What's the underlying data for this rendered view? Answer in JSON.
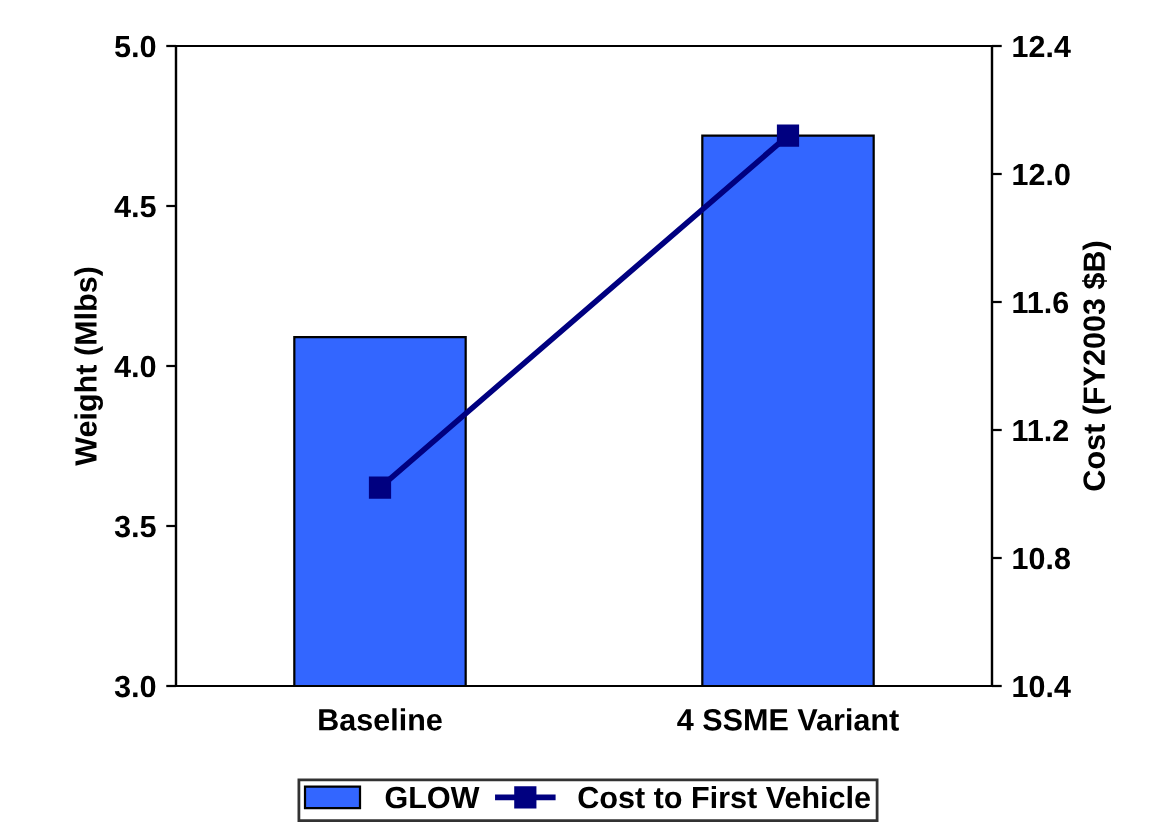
{
  "chart_data": {
    "type": "bar",
    "categories": [
      "Baseline",
      "4 SSME Variant"
    ],
    "ylabel": "Weight (Mlbs)",
    "y2label": "Cost (FY2003 $B)",
    "ylim": [
      3.0,
      5.0
    ],
    "yticks": [
      {
        "value": 3.0,
        "label": "3.0"
      },
      {
        "value": 3.5,
        "label": "3.5"
      },
      {
        "value": 4.0,
        "label": "4.0"
      },
      {
        "value": 4.5,
        "label": "4.5"
      },
      {
        "value": 5.0,
        "label": "5.0"
      }
    ],
    "y2lim": [
      10.4,
      12.4
    ],
    "y2ticks": [
      {
        "value": 10.4,
        "label": "10.4"
      },
      {
        "value": 10.8,
        "label": "10.8"
      },
      {
        "value": 11.2,
        "label": "11.2"
      },
      {
        "value": 11.6,
        "label": "11.6"
      },
      {
        "value": 12.0,
        "label": "12.0"
      },
      {
        "value": 12.4,
        "label": "12.4"
      }
    ],
    "series": [
      {
        "name": "GLOW",
        "color": "#3366ff",
        "values": [
          4.09,
          4.72
        ]
      },
      {
        "name": "Cost to First Vehicle",
        "type": "line",
        "axis": "y2",
        "color": "#000080",
        "marker": "square",
        "line_style": "solid",
        "values": [
          11.02,
          12.12
        ]
      }
    ],
    "legend": "bottom",
    "grid": false
  }
}
